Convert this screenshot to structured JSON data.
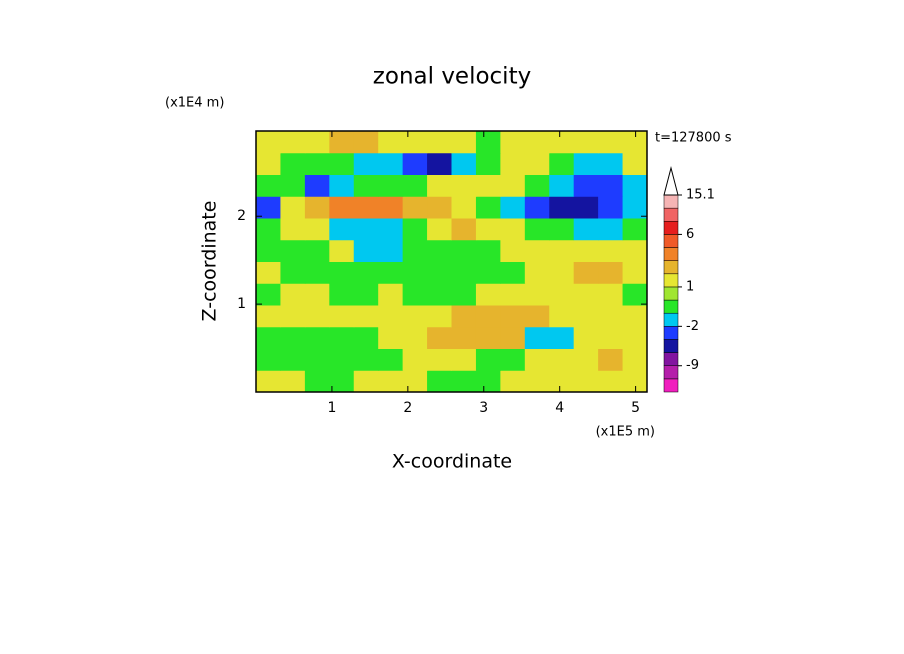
{
  "chart_data": {
    "type": "contour",
    "title": "zonal velocity",
    "time_label": "t=127800 s",
    "x_label": "X-coordinate",
    "y_label": "Z-coordinate",
    "x_unit": "(x1E5 m)",
    "y_unit": "(x1E4 m)",
    "xlim": [
      0,
      5.15
    ],
    "ylim": [
      0,
      2.97
    ],
    "xticks": [
      1,
      2,
      3,
      4,
      5
    ],
    "yticks": [
      1,
      2
    ],
    "z": [
      [
        1.5,
        1.5,
        -0.5,
        -0.5,
        1.5,
        1.5,
        1.5,
        -0.5,
        -0.5,
        -0.5,
        1.5,
        1.5,
        1.5,
        1.5,
        1.5,
        1.5
      ],
      [
        -0.5,
        -0.5,
        -0.5,
        -0.5,
        -0.5,
        -0.5,
        1.5,
        1.5,
        1.5,
        -0.5,
        -0.5,
        1.5,
        1.5,
        1.5,
        2.5,
        1.5
      ],
      [
        -0.5,
        -0.5,
        -0.5,
        -0.5,
        -0.5,
        1.5,
        1.5,
        2.5,
        2.5,
        2.5,
        2.5,
        -1.5,
        -1.5,
        1.5,
        1.5,
        1.5
      ],
      [
        1.5,
        1.5,
        1.5,
        1.5,
        1.5,
        1.5,
        1.5,
        1.5,
        2.5,
        2.5,
        2.5,
        2.5,
        1.5,
        1.5,
        1.5,
        1.5
      ],
      [
        -0.5,
        1.5,
        1.5,
        -0.5,
        -0.5,
        1.5,
        -0.5,
        -0.5,
        -0.5,
        1.5,
        1.5,
        1.5,
        1.5,
        1.5,
        1.5,
        -0.5
      ],
      [
        1.5,
        -0.5,
        -0.5,
        -0.5,
        -0.5,
        -0.5,
        -0.5,
        -0.5,
        -0.5,
        -0.5,
        -0.5,
        1.5,
        1.5,
        2.5,
        2.5,
        1.5
      ],
      [
        -0.5,
        -0.5,
        -0.5,
        1.5,
        -1.5,
        -1.5,
        -0.5,
        -0.5,
        -0.5,
        -0.5,
        1.5,
        1.5,
        1.5,
        1.5,
        1.5,
        1.5
      ],
      [
        -0.5,
        1.5,
        1.5,
        -1.5,
        -1.5,
        -1.5,
        -0.5,
        1.5,
        2.5,
        1.5,
        1.5,
        -0.5,
        -0.5,
        -1.5,
        -1.5,
        -0.5
      ],
      [
        -2.5,
        1.5,
        2.5,
        3.5,
        3.5,
        3.5,
        2.5,
        2.5,
        1.5,
        -0.5,
        -1.5,
        -2.5,
        -4,
        -4,
        -2.5,
        -1.5
      ],
      [
        -0.5,
        -0.5,
        -2.5,
        -1.5,
        -0.5,
        -0.5,
        -0.5,
        1.5,
        1.5,
        1.5,
        1.5,
        -0.5,
        -1.5,
        -2.5,
        -2.5,
        -1.5
      ],
      [
        1.5,
        -0.5,
        -0.5,
        -0.5,
        -1.5,
        -1.5,
        -2.5,
        -4,
        -1.5,
        -0.5,
        1.5,
        1.5,
        -0.5,
        -1.5,
        -1.5,
        1.5
      ],
      [
        1.5,
        1.5,
        1.5,
        2.5,
        2.5,
        1.5,
        1.5,
        1.5,
        1.5,
        -0.5,
        1.5,
        1.5,
        1.5,
        1.5,
        1.5,
        1.5
      ]
    ],
    "levels": [
      -15,
      -12,
      -9,
      -6,
      -3,
      -2,
      -1,
      0,
      1,
      2,
      3,
      4.5,
      6,
      9,
      12,
      15.1
    ],
    "colors": [
      "#f01ebe",
      "#b41eaa",
      "#8214a0",
      "#1414a0",
      "#1e3cff",
      "#00c8f0",
      "#28e628",
      "#a0e632",
      "#e6e632",
      "#e6b42d",
      "#f08228",
      "#f05a28",
      "#e61e1e",
      "#f06464",
      "#f5b4b4"
    ],
    "colorbar_ticks": [
      -9,
      -2,
      1,
      6,
      15.1
    ]
  }
}
